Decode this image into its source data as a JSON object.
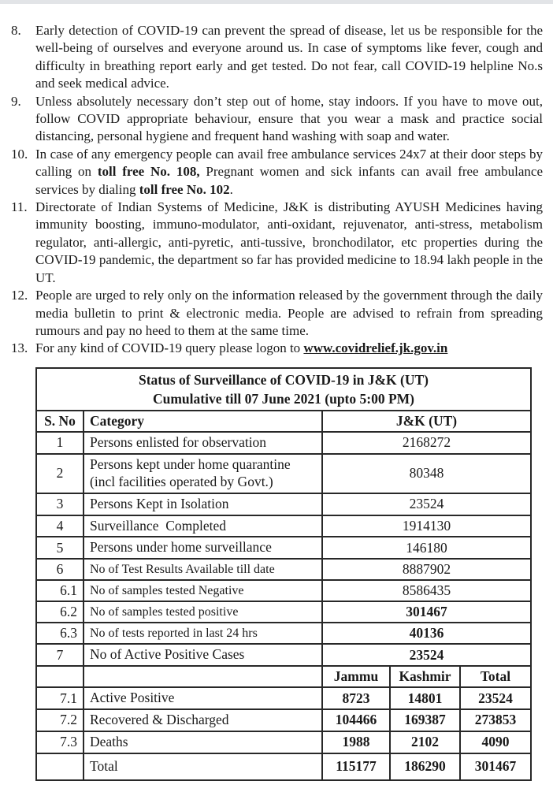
{
  "document": {
    "list_items": [
      {
        "number": "8.",
        "segments": [
          {
            "text": "Early detection of COVID-19 can prevent the spread of disease, let us be responsible for the well-being of ourselves and everyone around us. In case of symptoms like fever, cough and difficulty in breathing report early and get tested. Do not fear, call COVID-19 helpline No.s and seek medical advice."
          }
        ]
      },
      {
        "number": "9.",
        "segments": [
          {
            "text": "Unless absolutely necessary don’t step out of home, stay indoors.  If you have to move out, follow COVID appropriate behaviour, ensure that you wear a mask and practice social distancing, personal hygiene and frequent hand washing with soap and water."
          }
        ]
      },
      {
        "number": "10.",
        "segments": [
          {
            "text": "In case of any emergency people can avail free ambulance services 24x7 at their door steps by calling on "
          },
          {
            "text": "toll free No. 108,",
            "bold": true
          },
          {
            "text": " Pregnant women and sick infants can avail free ambulance services by dialing "
          },
          {
            "text": "toll free No. 102",
            "bold": true
          },
          {
            "text": "."
          }
        ]
      },
      {
        "number": "11.",
        "segments": [
          {
            "text": "Directorate of Indian Systems of Medicine, J&K is distributing AYUSH Medicines having immunity boosting, immuno-modulator, anti-oxidant, rejuvenator, anti-stress, metabolism regulator, anti-allergic, anti-pyretic, anti-tussive, bronchodilator, etc properties during the COVID-19 pandemic, the department so far has provided medicine to 18.94 lakh people in the UT."
          }
        ]
      },
      {
        "number": "12.",
        "segments": [
          {
            "text": "People are urged to rely only on the information released by the government through the daily media bulletin to print & electronic media. People are advised to refrain from spreading rumours and pay no heed to them at the same time."
          }
        ]
      },
      {
        "number": "13.",
        "segments": [
          {
            "text": "For any kind of COVID-19 query please logon to "
          },
          {
            "text": "www.covidrelief.jk.gov.in",
            "bold": true,
            "underline": true,
            "url": true
          }
        ]
      }
    ]
  },
  "table": {
    "title_line1": "Status of Surveillance of COVID-19 in J&K (UT)",
    "title_line2": "Cumulative till 07 June 2021 (upto 5:00 PM)",
    "headers": {
      "sno": "S. No",
      "category": "Category",
      "value": "J&K (UT)"
    },
    "rows": [
      {
        "sno": "1",
        "category": "Persons enlisted for observation",
        "value": "2168272"
      },
      {
        "sno": "2",
        "category": "Persons kept under home quarantine (incl facilities operated by Govt.)",
        "value": "80348"
      },
      {
        "sno": "3",
        "category": "Persons Kept in Isolation",
        "value": "23524"
      },
      {
        "sno": "4",
        "category": "Surveillance  Completed",
        "value": "1914130"
      },
      {
        "sno": "5",
        "category": "Persons under home surveillance",
        "value": "146180"
      },
      {
        "sno": "6",
        "category": "No of Test Results Available till date",
        "value": "8887902",
        "small": true
      },
      {
        "sno": "6.1",
        "category": "No of samples tested Negative",
        "value": "8586435",
        "small": true,
        "sno_right": true
      },
      {
        "sno": "6.2",
        "category": "No of samples tested positive",
        "value": "301467",
        "small": true,
        "sno_right": true,
        "value_bold": true
      },
      {
        "sno": "6.3",
        "category": "No of tests reported in last 24 hrs",
        "value": "40136",
        "small": true,
        "sno_right": true,
        "value_bold": true
      },
      {
        "sno": "7",
        "category": "No of Active Positive Cases",
        "value": "23524",
        "value_bold": true
      }
    ],
    "region_headers": [
      "Jammu",
      "Kashmir",
      "Total"
    ],
    "region_rows": [
      {
        "sno": "7.1",
        "category": "Active Positive",
        "jammu": "8723",
        "kashmir": "14801",
        "total": "23524"
      },
      {
        "sno": "7.2",
        "category": "Recovered & Discharged",
        "jammu": "104466",
        "kashmir": "169387",
        "total": "273853"
      },
      {
        "sno": "7.3",
        "category": "Deaths",
        "jammu": "1988",
        "kashmir": "2102",
        "total": "4090"
      }
    ],
    "total_row": {
      "sno": "",
      "category": "Total",
      "jammu": "115177",
      "kashmir": "186290",
      "total": "301467"
    }
  }
}
